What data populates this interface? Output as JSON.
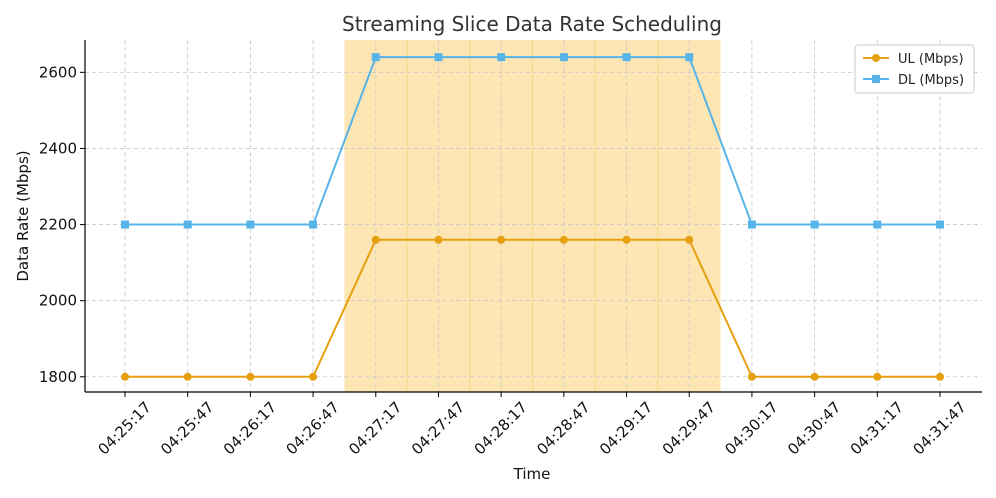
{
  "chart_data": {
    "type": "line",
    "title": "Streaming Slice Data Rate Scheduling",
    "xlabel": "Time",
    "ylabel": "Data Rate (Mbps)",
    "categories": [
      "04:25:17",
      "04:25:47",
      "04:26:17",
      "04:26:47",
      "04:27:17",
      "04:27:47",
      "04:28:17",
      "04:28:47",
      "04:29:17",
      "04:29:47",
      "04:30:17",
      "04:30:47",
      "04:31:17",
      "04:31:47"
    ],
    "ylim": [
      1760,
      2685
    ],
    "yticks": [
      1800,
      2000,
      2200,
      2400,
      2600
    ],
    "grid": true,
    "legend_position": "top-right",
    "highlight_range": [
      "04:27:02",
      "04:30:02"
    ],
    "highlight_color": "#fde6b3",
    "series": [
      {
        "name": "UL (Mbps)",
        "color": "#e6a00f",
        "marker": "circle",
        "values": [
          1800,
          1800,
          1800,
          1800,
          2160,
          2160,
          2160,
          2160,
          2160,
          2160,
          1800,
          1800,
          1800,
          1800
        ]
      },
      {
        "name": "DL (Mbps)",
        "color": "#56b4e9",
        "marker": "square",
        "values": [
          2200,
          2200,
          2200,
          2200,
          2640,
          2640,
          2640,
          2640,
          2640,
          2640,
          2200,
          2200,
          2200,
          2200
        ]
      }
    ]
  }
}
